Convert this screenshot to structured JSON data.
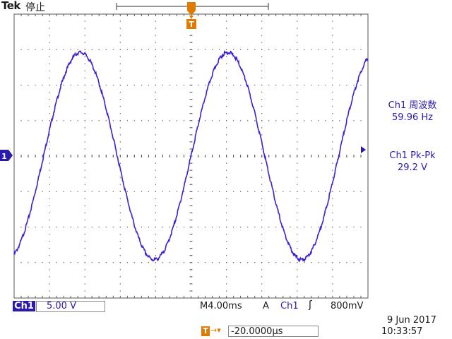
{
  "header": {
    "brand": "Tek",
    "state": "停止"
  },
  "measurements": [
    {
      "label": "Ch1 周波数",
      "value": "59.96 Hz"
    },
    {
      "label": "Ch1 Pk-Pk",
      "value": "29.2 V"
    }
  ],
  "channel": {
    "name": "Ch1",
    "scale": "5.00 V",
    "ground_marker": "1"
  },
  "timebase": {
    "text": "M4.00ms"
  },
  "trigger": {
    "label": "A",
    "source": "Ch1",
    "slope": "ʃ",
    "level": "800mV",
    "marker": "T"
  },
  "trigger_position": {
    "icon": "T",
    "arrow": "→▾",
    "value": "-20.0000µs"
  },
  "datetime": {
    "date": "9 Jun  2017",
    "time": "10:33:57"
  },
  "colors": {
    "trace": "#3a22d0",
    "accent": "#e07b00",
    "grid": "#555555",
    "channel": "#2a1ab0"
  },
  "chart_data": {
    "type": "line",
    "title": "",
    "xlabel": "",
    "ylabel": "",
    "divisions": {
      "x": 10,
      "y": 8
    },
    "x_unit_per_div_ms": 4.0,
    "y_unit_per_div_V": 5.0,
    "xlim_ms": [
      -20,
      20
    ],
    "ylim_V": [
      -20,
      20
    ],
    "series": [
      {
        "name": "",
        "waveform": "sine",
        "frequency_hz": 59.96,
        "amplitude_v": 14.6,
        "offset_v": 0,
        "phase_deg_at_trigger": 0
      }
    ],
    "grid": true
  }
}
